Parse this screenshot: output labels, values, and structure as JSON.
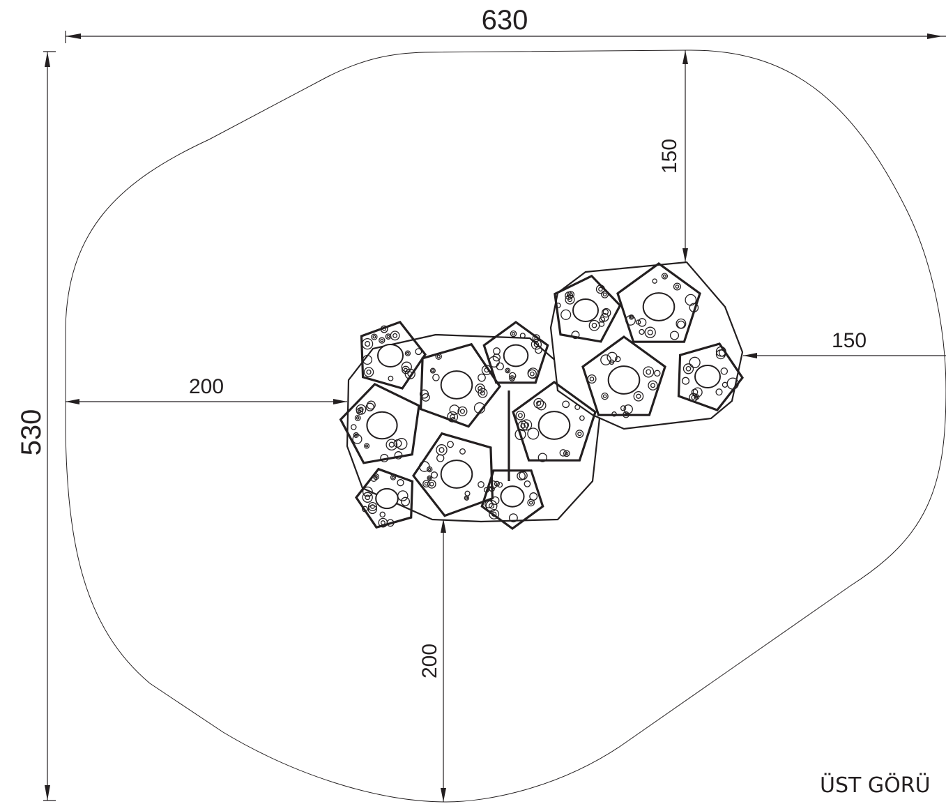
{
  "dimensions": {
    "overall_width": "630",
    "overall_height": "530",
    "left_clearance": "200",
    "bottom_clearance": "200",
    "top_clearance": "150",
    "right_clearance": "150"
  },
  "view_label": "ÜST GÖRÜ"
}
